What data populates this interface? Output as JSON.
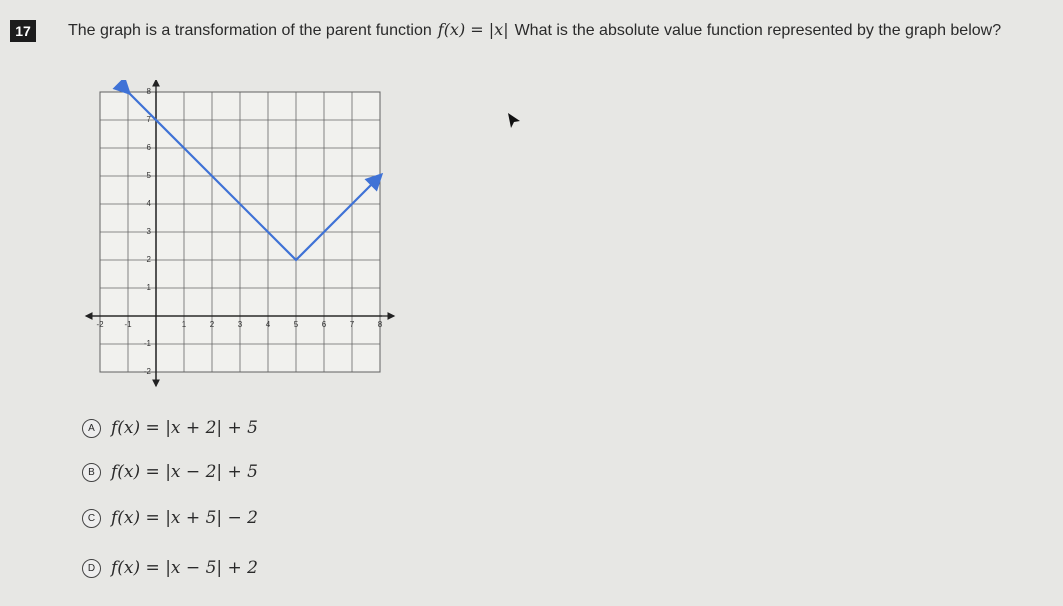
{
  "question": {
    "number": "17",
    "text_before": "The graph is a transformation of the parent function",
    "parent_function": "f(x) = |x|",
    "text_after": "What is the absolute value function represented by the graph below?"
  },
  "chart_data": {
    "type": "line",
    "x": [
      -1,
      5,
      8
    ],
    "values": [
      8,
      2,
      5
    ],
    "color": "#3f72d6",
    "xlim": [
      -2,
      8
    ],
    "ylim": [
      -2,
      8
    ],
    "xticks": [
      -2,
      -1,
      1,
      2,
      3,
      4,
      5,
      6,
      7,
      8
    ],
    "yticks": [
      -2,
      -1,
      1,
      2,
      3,
      4,
      5,
      6,
      7,
      8
    ],
    "grid": true
  },
  "choices": [
    {
      "letter": "A",
      "formula": "f(x) = |x + 2| + 5"
    },
    {
      "letter": "B",
      "formula": "f(x) = |x − 2| + 5"
    },
    {
      "letter": "C",
      "formula": "f(x) = |x + 5| − 2"
    },
    {
      "letter": "D",
      "formula": "f(x) = |x − 5| + 2"
    }
  ]
}
